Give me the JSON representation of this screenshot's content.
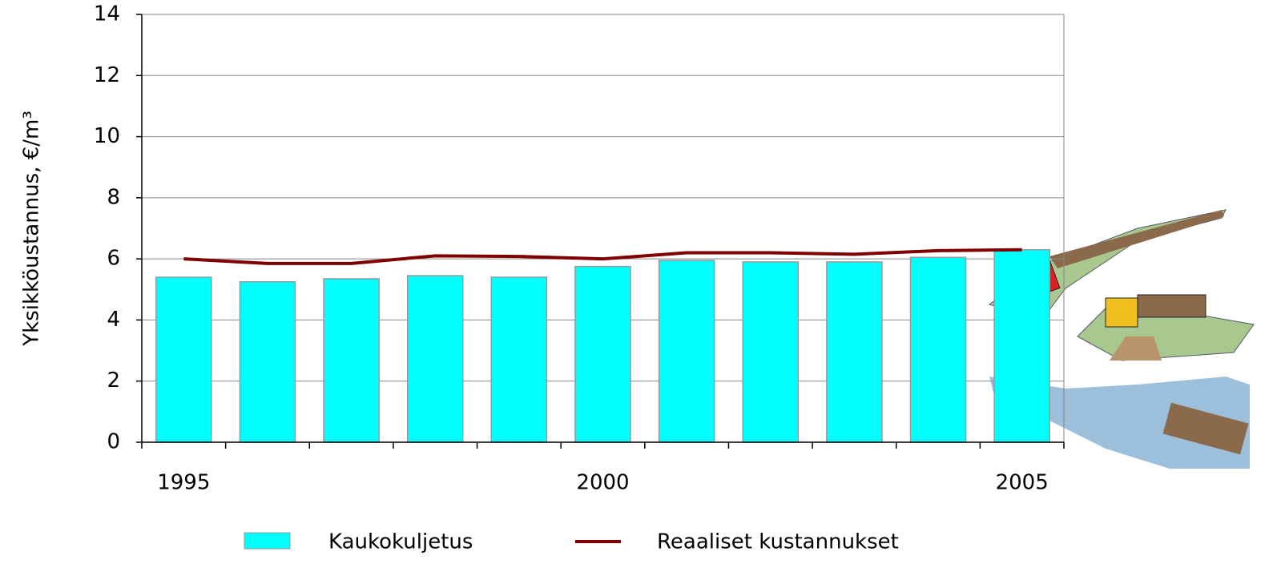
{
  "chart_data": {
    "type": "bar",
    "y_label": "Yksikköustannus, €/m³",
    "categories": [
      "1995",
      null,
      null,
      null,
      null,
      "2000",
      null,
      null,
      null,
      null,
      "2005"
    ],
    "series": [
      {
        "name": "Kaukokuljetus",
        "color": "#00ffff",
        "type": "bar",
        "values": [
          5.4,
          5.25,
          5.35,
          5.45,
          5.4,
          5.75,
          5.95,
          5.9,
          5.9,
          6.05,
          6.3
        ]
      },
      {
        "name": "Reaaliset kustannukset",
        "color": "#800000",
        "type": "line",
        "values": [
          6.0,
          5.85,
          5.85,
          6.1,
          6.08,
          6.0,
          6.2,
          6.2,
          6.15,
          6.27,
          6.3
        ]
      }
    ],
    "ylim": [
      0,
      14
    ],
    "yticks": [
      0,
      2,
      4,
      6,
      8,
      10,
      12,
      14
    ],
    "grid": true,
    "legend": "bottom"
  }
}
